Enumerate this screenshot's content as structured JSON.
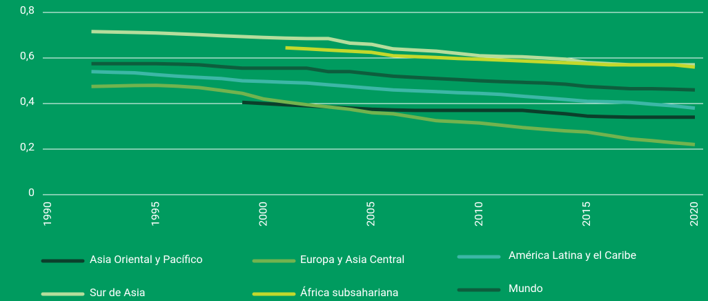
{
  "chart_data": {
    "type": "line",
    "x": [
      1992,
      1993,
      1994,
      1995,
      1996,
      1997,
      1998,
      1999,
      2000,
      2001,
      2002,
      2003,
      2004,
      2005,
      2006,
      2007,
      2008,
      2009,
      2010,
      2011,
      2012,
      2013,
      2014,
      2015,
      2016,
      2017,
      2018,
      2019,
      2020
    ],
    "xlim": [
      1990,
      2020
    ],
    "xticks": [
      1990,
      1995,
      2000,
      2005,
      2010,
      2015,
      2020
    ],
    "ylim": [
      0,
      0.8
    ],
    "yticks": [
      0,
      {
        "value": 0.2,
        "label": "0,2"
      },
      {
        "value": 0.4,
        "label": "0,4"
      },
      {
        "value": 0.6,
        "label": "0,6"
      },
      {
        "value": 0.8,
        "label": "0,8"
      }
    ],
    "grid": true,
    "series": [
      {
        "name": "Asia Oriental y Pacífico",
        "color": "#0b3f2b",
        "values": [
          null,
          null,
          null,
          null,
          null,
          null,
          null,
          0.405,
          0.4,
          0.395,
          0.39,
          0.385,
          0.38,
          0.375,
          0.372,
          0.37,
          0.37,
          0.37,
          0.37,
          0.37,
          0.37,
          0.362,
          0.355,
          0.345,
          0.342,
          0.34,
          0.34,
          0.34,
          0.34
        ]
      },
      {
        "name": "Europa y Asia Central",
        "color": "#72b34e",
        "values": [
          0.475,
          0.477,
          0.479,
          0.48,
          0.476,
          0.47,
          0.458,
          0.445,
          0.42,
          0.407,
          0.395,
          0.385,
          0.375,
          0.36,
          0.355,
          0.34,
          0.325,
          0.32,
          0.315,
          0.305,
          0.295,
          0.287,
          0.28,
          0.275,
          0.26,
          0.245,
          0.237,
          0.228,
          0.22
        ]
      },
      {
        "name": "América Latina y el Caribe",
        "color": "#3cb7a6",
        "values": [
          0.54,
          0.537,
          0.535,
          0.527,
          0.52,
          0.515,
          0.51,
          0.5,
          0.497,
          0.493,
          0.49,
          0.482,
          0.475,
          0.467,
          0.46,
          0.456,
          0.452,
          0.448,
          0.445,
          0.44,
          0.432,
          0.425,
          0.418,
          0.41,
          0.408,
          0.405,
          0.397,
          0.39,
          0.38
        ]
      },
      {
        "name": "Sur de Asia",
        "color": "#b5dd9c",
        "values": [
          0.716,
          0.714,
          0.712,
          0.71,
          0.706,
          0.702,
          0.698,
          0.694,
          0.69,
          0.687,
          0.685,
          0.685,
          0.665,
          0.66,
          0.64,
          0.635,
          0.63,
          0.62,
          0.61,
          0.607,
          0.605,
          0.6,
          0.595,
          0.58,
          0.575,
          0.57,
          0.57,
          0.57,
          0.57
        ]
      },
      {
        "name": "África subsahariana",
        "color": "#c3d82c",
        "values": [
          null,
          null,
          null,
          null,
          null,
          null,
          null,
          null,
          null,
          0.645,
          0.64,
          0.635,
          0.63,
          0.625,
          0.61,
          0.606,
          0.602,
          0.598,
          0.595,
          0.591,
          0.587,
          0.583,
          0.579,
          0.575,
          0.57,
          0.57,
          0.57,
          0.57,
          0.56
        ]
      },
      {
        "name": "Mundo",
        "color": "#0d5e3d",
        "values": [
          0.575,
          0.575,
          0.575,
          0.575,
          0.573,
          0.57,
          0.562,
          0.555,
          0.555,
          0.555,
          0.555,
          0.54,
          0.54,
          0.53,
          0.52,
          0.515,
          0.51,
          0.505,
          0.5,
          0.496,
          0.493,
          0.49,
          0.485,
          0.475,
          0.47,
          0.465,
          0.465,
          0.463,
          0.46
        ]
      }
    ]
  }
}
